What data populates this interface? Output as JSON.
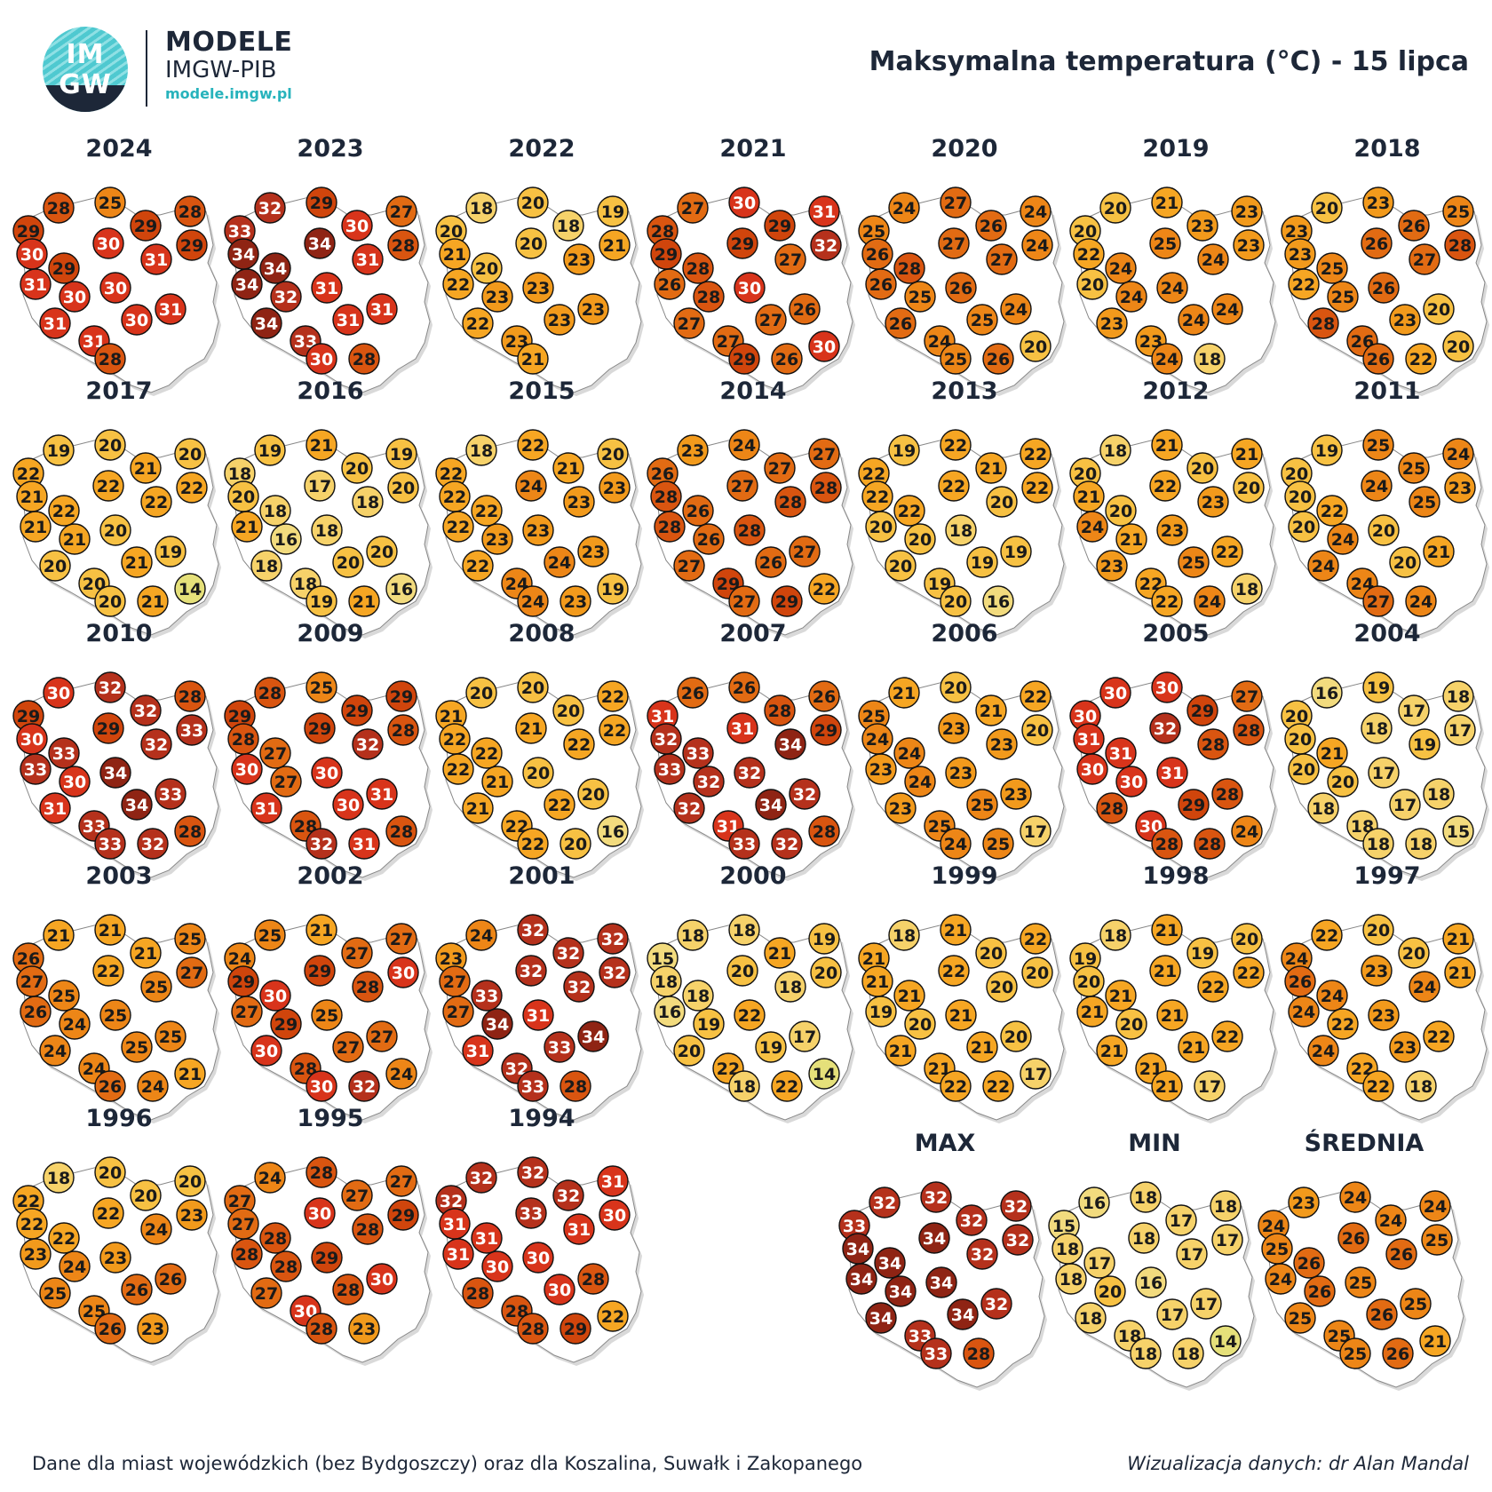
{
  "logo": {
    "text_line1": "IM",
    "text_line2": "GW",
    "name": "MODELE",
    "org": "IMGW-PIB",
    "url": "modele.imgw.pl"
  },
  "title": "Maksymalna temperatura (°C) - 15 lipca",
  "footer": {
    "left": "Dane dla miast wojewódzkich (bez Bydgoszczy) oraz dla Koszalina, Suwałk i Zakopanego",
    "right": "Wizualizacja danych: dr Alan Mandal"
  },
  "colors": {
    "scale": [
      {
        "max": 14,
        "color": "#e5e07a"
      },
      {
        "max": 16,
        "color": "#f2db7e"
      },
      {
        "max": 18,
        "color": "#f6d26a"
      },
      {
        "max": 20,
        "color": "#f7c143"
      },
      {
        "max": 22,
        "color": "#f6a623"
      },
      {
        "max": 23,
        "color": "#f29a1c"
      },
      {
        "max": 25,
        "color": "#ed8617"
      },
      {
        "max": 27,
        "color": "#e26b13"
      },
      {
        "max": 28,
        "color": "#d95510"
      },
      {
        "max": 29,
        "color": "#d0450c"
      },
      {
        "max": 31,
        "color": "#d8341b"
      },
      {
        "max": 33,
        "color": "#b5311c"
      },
      {
        "max": 99,
        "color": "#8f2414"
      }
    ]
  },
  "panels": [
    {
      "label": "2024",
      "values": [
        29,
        28,
        25,
        29,
        28,
        30,
        29,
        30,
        29,
        31,
        30,
        30,
        31,
        31,
        31,
        30,
        31,
        28
      ]
    },
    {
      "label": "2023",
      "values": [
        33,
        32,
        29,
        30,
        27,
        34,
        34,
        34,
        28,
        34,
        32,
        31,
        31,
        34,
        33,
        31,
        31,
        30,
        28
      ]
    },
    {
      "label": "2022",
      "values": [
        20,
        18,
        20,
        18,
        19,
        21,
        20,
        20,
        21,
        22,
        23,
        23,
        23,
        22,
        23,
        23,
        23,
        21
      ]
    },
    {
      "label": "2021",
      "values": [
        28,
        27,
        30,
        29,
        31,
        29,
        28,
        29,
        32,
        26,
        28,
        30,
        27,
        27,
        27,
        27,
        26,
        29,
        26,
        30
      ]
    },
    {
      "label": "2020",
      "values": [
        25,
        24,
        27,
        26,
        24,
        26,
        28,
        27,
        24,
        26,
        25,
        26,
        27,
        26,
        24,
        25,
        24,
        25,
        26,
        20
      ]
    },
    {
      "label": "2019",
      "values": [
        20,
        20,
        21,
        23,
        23,
        22,
        24,
        25,
        23,
        20,
        24,
        24,
        24,
        23,
        23,
        24,
        24,
        24,
        18
      ]
    },
    {
      "label": "2018",
      "values": [
        23,
        20,
        23,
        26,
        25,
        23,
        25,
        26,
        28,
        22,
        25,
        26,
        27,
        28,
        26,
        23,
        20,
        26,
        22,
        20
      ]
    },
    {
      "label": "2017",
      "values": [
        22,
        19,
        20,
        21,
        20,
        21,
        22,
        22,
        22,
        21,
        21,
        20,
        22,
        20,
        20,
        21,
        19,
        20,
        21,
        14
      ]
    },
    {
      "label": "2016",
      "values": [
        18,
        19,
        21,
        20,
        19,
        20,
        18,
        17,
        20,
        21,
        16,
        18,
        18,
        18,
        18,
        20,
        20,
        19,
        21,
        16
      ]
    },
    {
      "label": "2015",
      "values": [
        22,
        18,
        22,
        21,
        20,
        22,
        22,
        24,
        23,
        22,
        23,
        23,
        23,
        22,
        24,
        24,
        23,
        24,
        23,
        19
      ]
    },
    {
      "label": "2014",
      "values": [
        26,
        23,
        24,
        27,
        27,
        28,
        26,
        27,
        28,
        28,
        26,
        28,
        28,
        27,
        29,
        26,
        27,
        27,
        29,
        22
      ]
    },
    {
      "label": "2013",
      "values": [
        22,
        19,
        22,
        21,
        22,
        22,
        22,
        22,
        22,
        20,
        20,
        18,
        20,
        20,
        19,
        19,
        19,
        20,
        16
      ]
    },
    {
      "label": "2012",
      "values": [
        20,
        18,
        21,
        20,
        21,
        21,
        20,
        22,
        20,
        24,
        21,
        23,
        23,
        23,
        22,
        25,
        22,
        22,
        24,
        18
      ]
    },
    {
      "label": "2011",
      "values": [
        20,
        19,
        25,
        25,
        24,
        20,
        22,
        24,
        23,
        20,
        24,
        20,
        25,
        24,
        24,
        20,
        21,
        27,
        24
      ]
    },
    {
      "label": "2010",
      "values": [
        29,
        30,
        32,
        32,
        28,
        30,
        33,
        29,
        33,
        33,
        30,
        34,
        32,
        31,
        33,
        34,
        33,
        33,
        32,
        28
      ]
    },
    {
      "label": "2009",
      "values": [
        29,
        28,
        25,
        29,
        29,
        28,
        27,
        29,
        28,
        30,
        27,
        30,
        32,
        31,
        28,
        30,
        31,
        32,
        31,
        28
      ]
    },
    {
      "label": "2008",
      "values": [
        21,
        20,
        20,
        20,
        22,
        22,
        22,
        21,
        22,
        22,
        21,
        20,
        22,
        21,
        22,
        22,
        20,
        22,
        20,
        16
      ]
    },
    {
      "label": "2007",
      "values": [
        31,
        26,
        26,
        28,
        26,
        32,
        33,
        31,
        29,
        33,
        32,
        32,
        34,
        32,
        31,
        34,
        32,
        33,
        32,
        28
      ]
    },
    {
      "label": "2006",
      "values": [
        25,
        21,
        20,
        21,
        22,
        24,
        24,
        23,
        20,
        23,
        24,
        23,
        23,
        23,
        25,
        25,
        23,
        24,
        25,
        17
      ]
    },
    {
      "label": "2005",
      "values": [
        30,
        30,
        30,
        29,
        27,
        31,
        31,
        32,
        28,
        30,
        30,
        31,
        28,
        28,
        30,
        29,
        28,
        28,
        28,
        24
      ]
    },
    {
      "label": "2004",
      "values": [
        20,
        16,
        19,
        17,
        18,
        20,
        21,
        18,
        17,
        20,
        20,
        17,
        19,
        18,
        18,
        17,
        18,
        18,
        18,
        15
      ]
    },
    {
      "label": "2003",
      "values": [
        26,
        21,
        21,
        21,
        25,
        27,
        25,
        22,
        27,
        26,
        24,
        25,
        25,
        24,
        24,
        25,
        25,
        26,
        24,
        21
      ]
    },
    {
      "label": "2002",
      "values": [
        24,
        25,
        21,
        27,
        27,
        29,
        30,
        29,
        30,
        27,
        29,
        25,
        28,
        30,
        28,
        27,
        27,
        30,
        32,
        24
      ]
    },
    {
      "label": "2001",
      "values": [
        23,
        24,
        32,
        32,
        32,
        27,
        33,
        32,
        32,
        27,
        34,
        31,
        32,
        31,
        32,
        33,
        34,
        33,
        28
      ]
    },
    {
      "label": "2000",
      "values": [
        15,
        18,
        18,
        21,
        19,
        18,
        18,
        20,
        20,
        16,
        19,
        22,
        18,
        20,
        22,
        19,
        17,
        18,
        22,
        14
      ]
    },
    {
      "label": "1999",
      "values": [
        21,
        18,
        21,
        20,
        22,
        21,
        21,
        22,
        20,
        19,
        20,
        21,
        20,
        21,
        21,
        21,
        20,
        22,
        22,
        17
      ]
    },
    {
      "label": "1998",
      "values": [
        19,
        18,
        21,
        19,
        20,
        20,
        21,
        21,
        22,
        21,
        20,
        21,
        22,
        21,
        21,
        21,
        22,
        21,
        17
      ]
    },
    {
      "label": "1997",
      "values": [
        24,
        22,
        20,
        20,
        21,
        26,
        24,
        23,
        21,
        24,
        22,
        23,
        24,
        24,
        22,
        23,
        22,
        22,
        18
      ]
    },
    {
      "label": "1996",
      "values": [
        22,
        18,
        20,
        20,
        20,
        22,
        22,
        22,
        23,
        23,
        24,
        23,
        24,
        25,
        25,
        26,
        26,
        26,
        23
      ]
    },
    {
      "label": "1995",
      "values": [
        27,
        24,
        28,
        27,
        27,
        27,
        28,
        30,
        29,
        28,
        28,
        29,
        28,
        27,
        30,
        28,
        30,
        28,
        23
      ]
    },
    {
      "label": "1994",
      "values": [
        32,
        32,
        32,
        32,
        31,
        31,
        31,
        33,
        30,
        31,
        30,
        30,
        31,
        28,
        28,
        30,
        28,
        28,
        29,
        22
      ]
    },
    {
      "label": "MAX",
      "values": [
        33,
        32,
        32,
        32,
        32,
        34,
        34,
        34,
        32,
        34,
        34,
        34,
        32,
        34,
        33,
        34,
        32,
        33,
        28
      ]
    },
    {
      "label": "MIN",
      "values": [
        15,
        16,
        18,
        17,
        18,
        18,
        17,
        18,
        17,
        18,
        20,
        16,
        17,
        18,
        18,
        17,
        17,
        18,
        18,
        14
      ]
    },
    {
      "label": "ŚREDNIA",
      "values": [
        24,
        23,
        24,
        24,
        24,
        25,
        26,
        26,
        25,
        24,
        26,
        25,
        26,
        25,
        25,
        26,
        25,
        25,
        26,
        21
      ]
    }
  ]
}
